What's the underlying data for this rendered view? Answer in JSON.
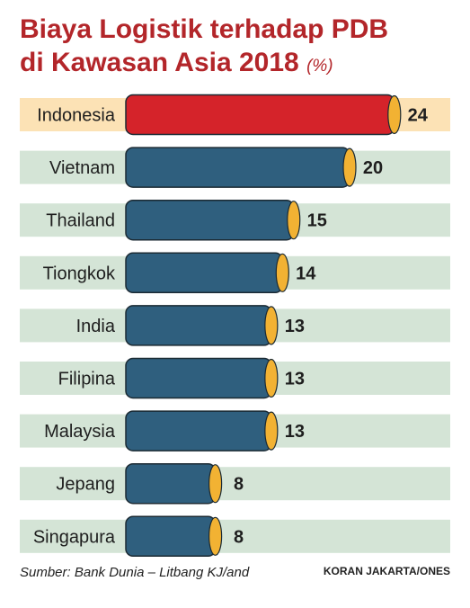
{
  "title_line1": "Biaya Logistik terhadap PDB",
  "title_line2": "di Kawasan Asia 2018",
  "unit": "(%)",
  "source": "Sumber: Bank Dunia – Litbang KJ/and",
  "credit": "KORAN JAKARTA/ONES",
  "colors": {
    "highlight_bar": "#d5232a",
    "bar": "#2f5f7e",
    "cap": "#f2b233",
    "highlight_row": "#fce2b5",
    "row": "#d4e4d6"
  },
  "chart_data": {
    "type": "bar",
    "orientation": "horizontal",
    "categories": [
      "Indonesia",
      "Vietnam",
      "Thailand",
      "Tiongkok",
      "India",
      "Filipina",
      "Malaysia",
      "Jepang",
      "Singapura"
    ],
    "values": [
      24,
      20,
      15,
      14,
      13,
      13,
      13,
      8,
      8
    ],
    "highlight": "Indonesia"
  }
}
